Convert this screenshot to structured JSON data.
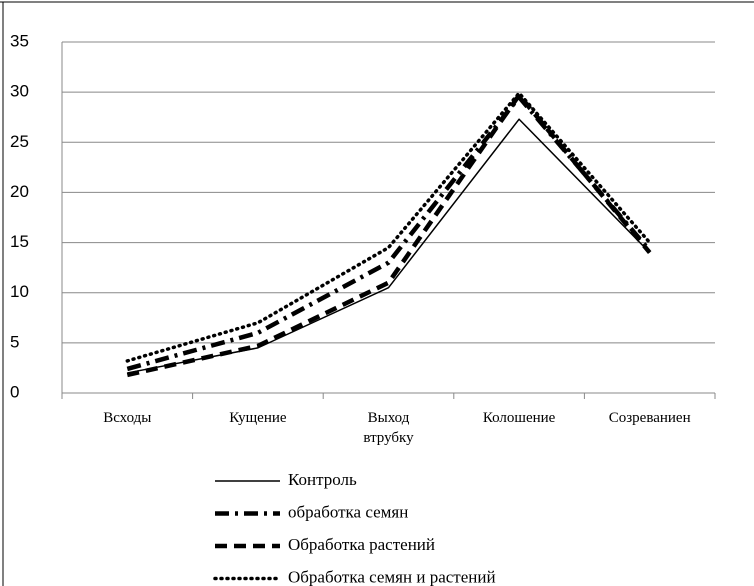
{
  "chart_data": {
    "type": "line",
    "categories": [
      "Всходы",
      "Кущение",
      "Выход втрубку",
      "Колошение",
      "Созреваниен"
    ],
    "series": [
      {
        "name": "Контроль",
        "color": "#000000",
        "dash": "none",
        "values": [
          2,
          4.5,
          10.5,
          27.3,
          14
        ]
      },
      {
        "name": "обработка семян",
        "color": "#000000",
        "dash": "14 6 3 6",
        "values": [
          2.4,
          6,
          13,
          29.5,
          14.2
        ]
      },
      {
        "name": "Обработка растений",
        "color": "#000000",
        "dash": "12 7",
        "values": [
          1.8,
          4.7,
          11,
          29.7,
          14
        ]
      },
      {
        "name": "Обработка семян и растений",
        "color": "#000000",
        "dash": "1 5",
        "values": [
          3.2,
          7,
          14.5,
          29.9,
          15
        ]
      }
    ],
    "ylim": [
      0,
      35
    ],
    "yticks": [
      0,
      5,
      10,
      15,
      20,
      25,
      30,
      35
    ],
    "grid": true
  }
}
